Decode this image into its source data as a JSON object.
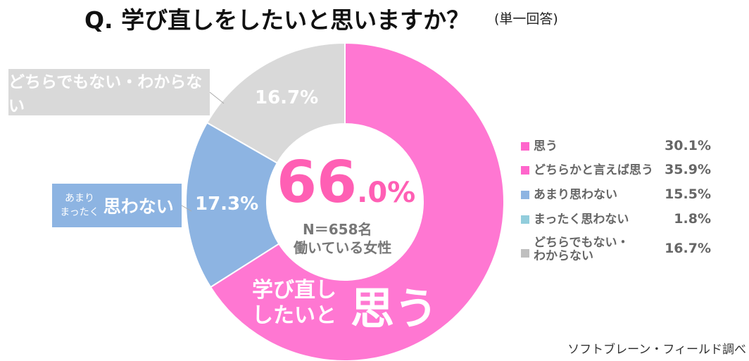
{
  "title": "Q.  学び直しをしたいと思いますか？",
  "subtitle": "(単一回答)",
  "center": {
    "big": "66",
    "small": ".0%",
    "n": "N＝658名",
    "group": "働いている女性"
  },
  "ring_label": {
    "line1": "学び直し",
    "line2": "したいと",
    "big": "思う"
  },
  "callouts": {
    "grey": "どちらでもない・わからない",
    "blue_small1": "あまり",
    "blue_small2": "まったく",
    "blue_big": "思わない"
  },
  "credit": "ソフトブレーン・フィールド調べ",
  "chart_data": {
    "type": "pie",
    "title": "Q.  学び直しをしたいと思いますか？",
    "ring": [
      {
        "name": "思う (合計)",
        "value": 66.0,
        "label": "",
        "color": "#ff77d2"
      },
      {
        "name": "思わない (合計)",
        "value": 17.3,
        "label": "17.3%",
        "color": "#8db4e2"
      },
      {
        "name": "どちらでもない・わからない",
        "value": 16.7,
        "label": "16.7%",
        "color": "#d9d9d9"
      }
    ],
    "legend": [
      {
        "label": "思う",
        "value": "30.1%",
        "color": "#ff66cc"
      },
      {
        "label": "どちらかと言えば思う",
        "value": "35.9%",
        "color": "#ff66cc"
      },
      {
        "label": "あまり思わない",
        "value": "15.5%",
        "color": "#8db4e2"
      },
      {
        "label": "まったく思わない",
        "value": "1.8%",
        "color": "#92cddc"
      },
      {
        "label": "どちらでもない・\nわからない",
        "value": "16.7%",
        "color": "#bfbfbf"
      }
    ]
  }
}
